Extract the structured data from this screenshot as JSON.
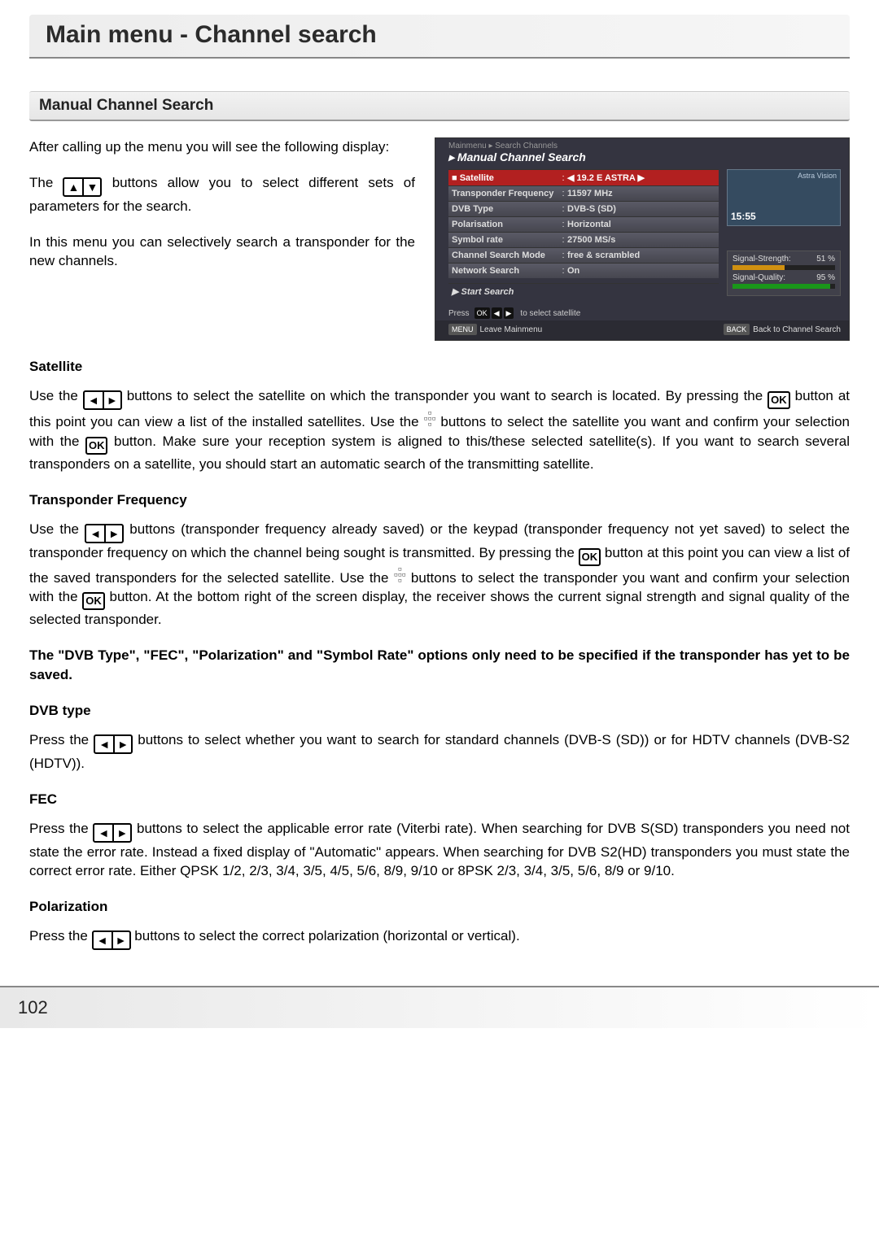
{
  "header": {
    "title": "Main menu - Channel search"
  },
  "section": {
    "title": "Manual Channel Search"
  },
  "intro": {
    "p1": "After calling up the menu you will see the following display:",
    "p2_pre": "The ",
    "p2_post": " buttons allow you to select different sets of parameters for the search.",
    "p3": "In this menu you can selectively search a transponder for the new channels."
  },
  "satellite_h": "Satellite",
  "sat": {
    "l1a": "Use the ",
    "l1b": " buttons to select the satellite on which the transponder you want to search is located. By pressing the ",
    "l2a": " button at this point you can view a list of the installed satellites. Use the ",
    "l2b": " buttons to select the satellite you want and confirm your selection with the ",
    "l3": " button. Make sure your reception system is aligned to this/these selected satellite(s). If you want to search several transponders on a satellite, you should start an automatic search of the transmitting satellite."
  },
  "transponder_h": "Transponder Frequency",
  "tp": {
    "l1a": "Use the ",
    "l1b": " buttons (transponder frequency already saved) or the keypad (transponder frequency not yet saved) to select the transponder frequency on which the channel being sought is transmitted. By pressing the ",
    "l1c": " button at this point you can view a list of the saved transponders for the selected satellite. Use the ",
    "l1d": " buttons to select the transponder you want and confirm your selection with the ",
    "l1e": " button. At the bottom right of the screen display, the receiver shows the current signal strength and signal quality of the selected transponder."
  },
  "note": "The \"DVB Type\", \"FEC\", \"Polarization\" and \"Symbol Rate\" options only need to be specified if the transponder has yet to be saved.",
  "dvb_h": "DVB type",
  "dvb": {
    "a": "Press the ",
    "b": " buttons to select whether you want to search for standard channels (DVB-S (SD)) or for HDTV channels (DVB-S2 (HDTV))."
  },
  "fec_h": "FEC",
  "fec": {
    "a": "Press the ",
    "b": " buttons to select the applicable error rate (Viterbi rate). When searching for DVB S(SD) transponders you need not state the error rate. Instead a fixed display of \"Automatic\" appears. When searching for DVB S2(HD) transponders you must state the correct error rate. Either QPSK 1/2, 2/3, 3/4, 3/5, 4/5, 5/6, 8/9, 9/10 or 8PSK 2/3, 3/4, 3/5, 5/6, 8/9 or 9/10."
  },
  "pol_h": "Polarization",
  "pol": {
    "a": "Press the ",
    "b": " buttons to select the correct polarization (horizontal or vertical)."
  },
  "osd": {
    "crumb": "Mainmenu ▸ Search Channels",
    "title": "▸ Manual Channel Search",
    "brand": "Astra Vision",
    "rows": [
      {
        "lbl": "Satellite",
        "val": "◀ 19.2 E ASTRA ▶",
        "sel": true,
        "ico": "■"
      },
      {
        "lbl": "Transponder Frequency",
        "val": "11597 MHz"
      },
      {
        "lbl": "DVB Type",
        "val": "DVB-S (SD)"
      },
      {
        "lbl": "Polarisation",
        "val": "Horizontal"
      },
      {
        "lbl": "Symbol rate",
        "val": "27500 MS/s"
      },
      {
        "lbl": "Channel Search Mode",
        "val": "free & scrambled"
      },
      {
        "lbl": "Network Search",
        "val": "On"
      }
    ],
    "start": "▶  Start Search",
    "sig_strength_lbl": "Signal-Strength:",
    "sig_strength_val": "51 %",
    "sig_strength_pct": 51,
    "sig_quality_lbl": "Signal-Quality:",
    "sig_quality_val": "95 %",
    "sig_quality_pct": 95,
    "sig_quality_color": "#1a961a",
    "sig_strength_color": "#d09010",
    "clock": "15:55",
    "hint": "to select satellite",
    "hint_keys": [
      "OK",
      "◀",
      "▶"
    ],
    "press": "Press",
    "footer_left_key": "MENU",
    "footer_left": "Leave Mainmenu",
    "footer_right_key": "BACK",
    "footer_right": "Back to Channel Search"
  },
  "ok_label": "OK",
  "page_number": "102",
  "colors": {
    "sel_row_bg": "#b22020",
    "osd_bg": "#343440",
    "osd_row_bg": "#50505a"
  }
}
